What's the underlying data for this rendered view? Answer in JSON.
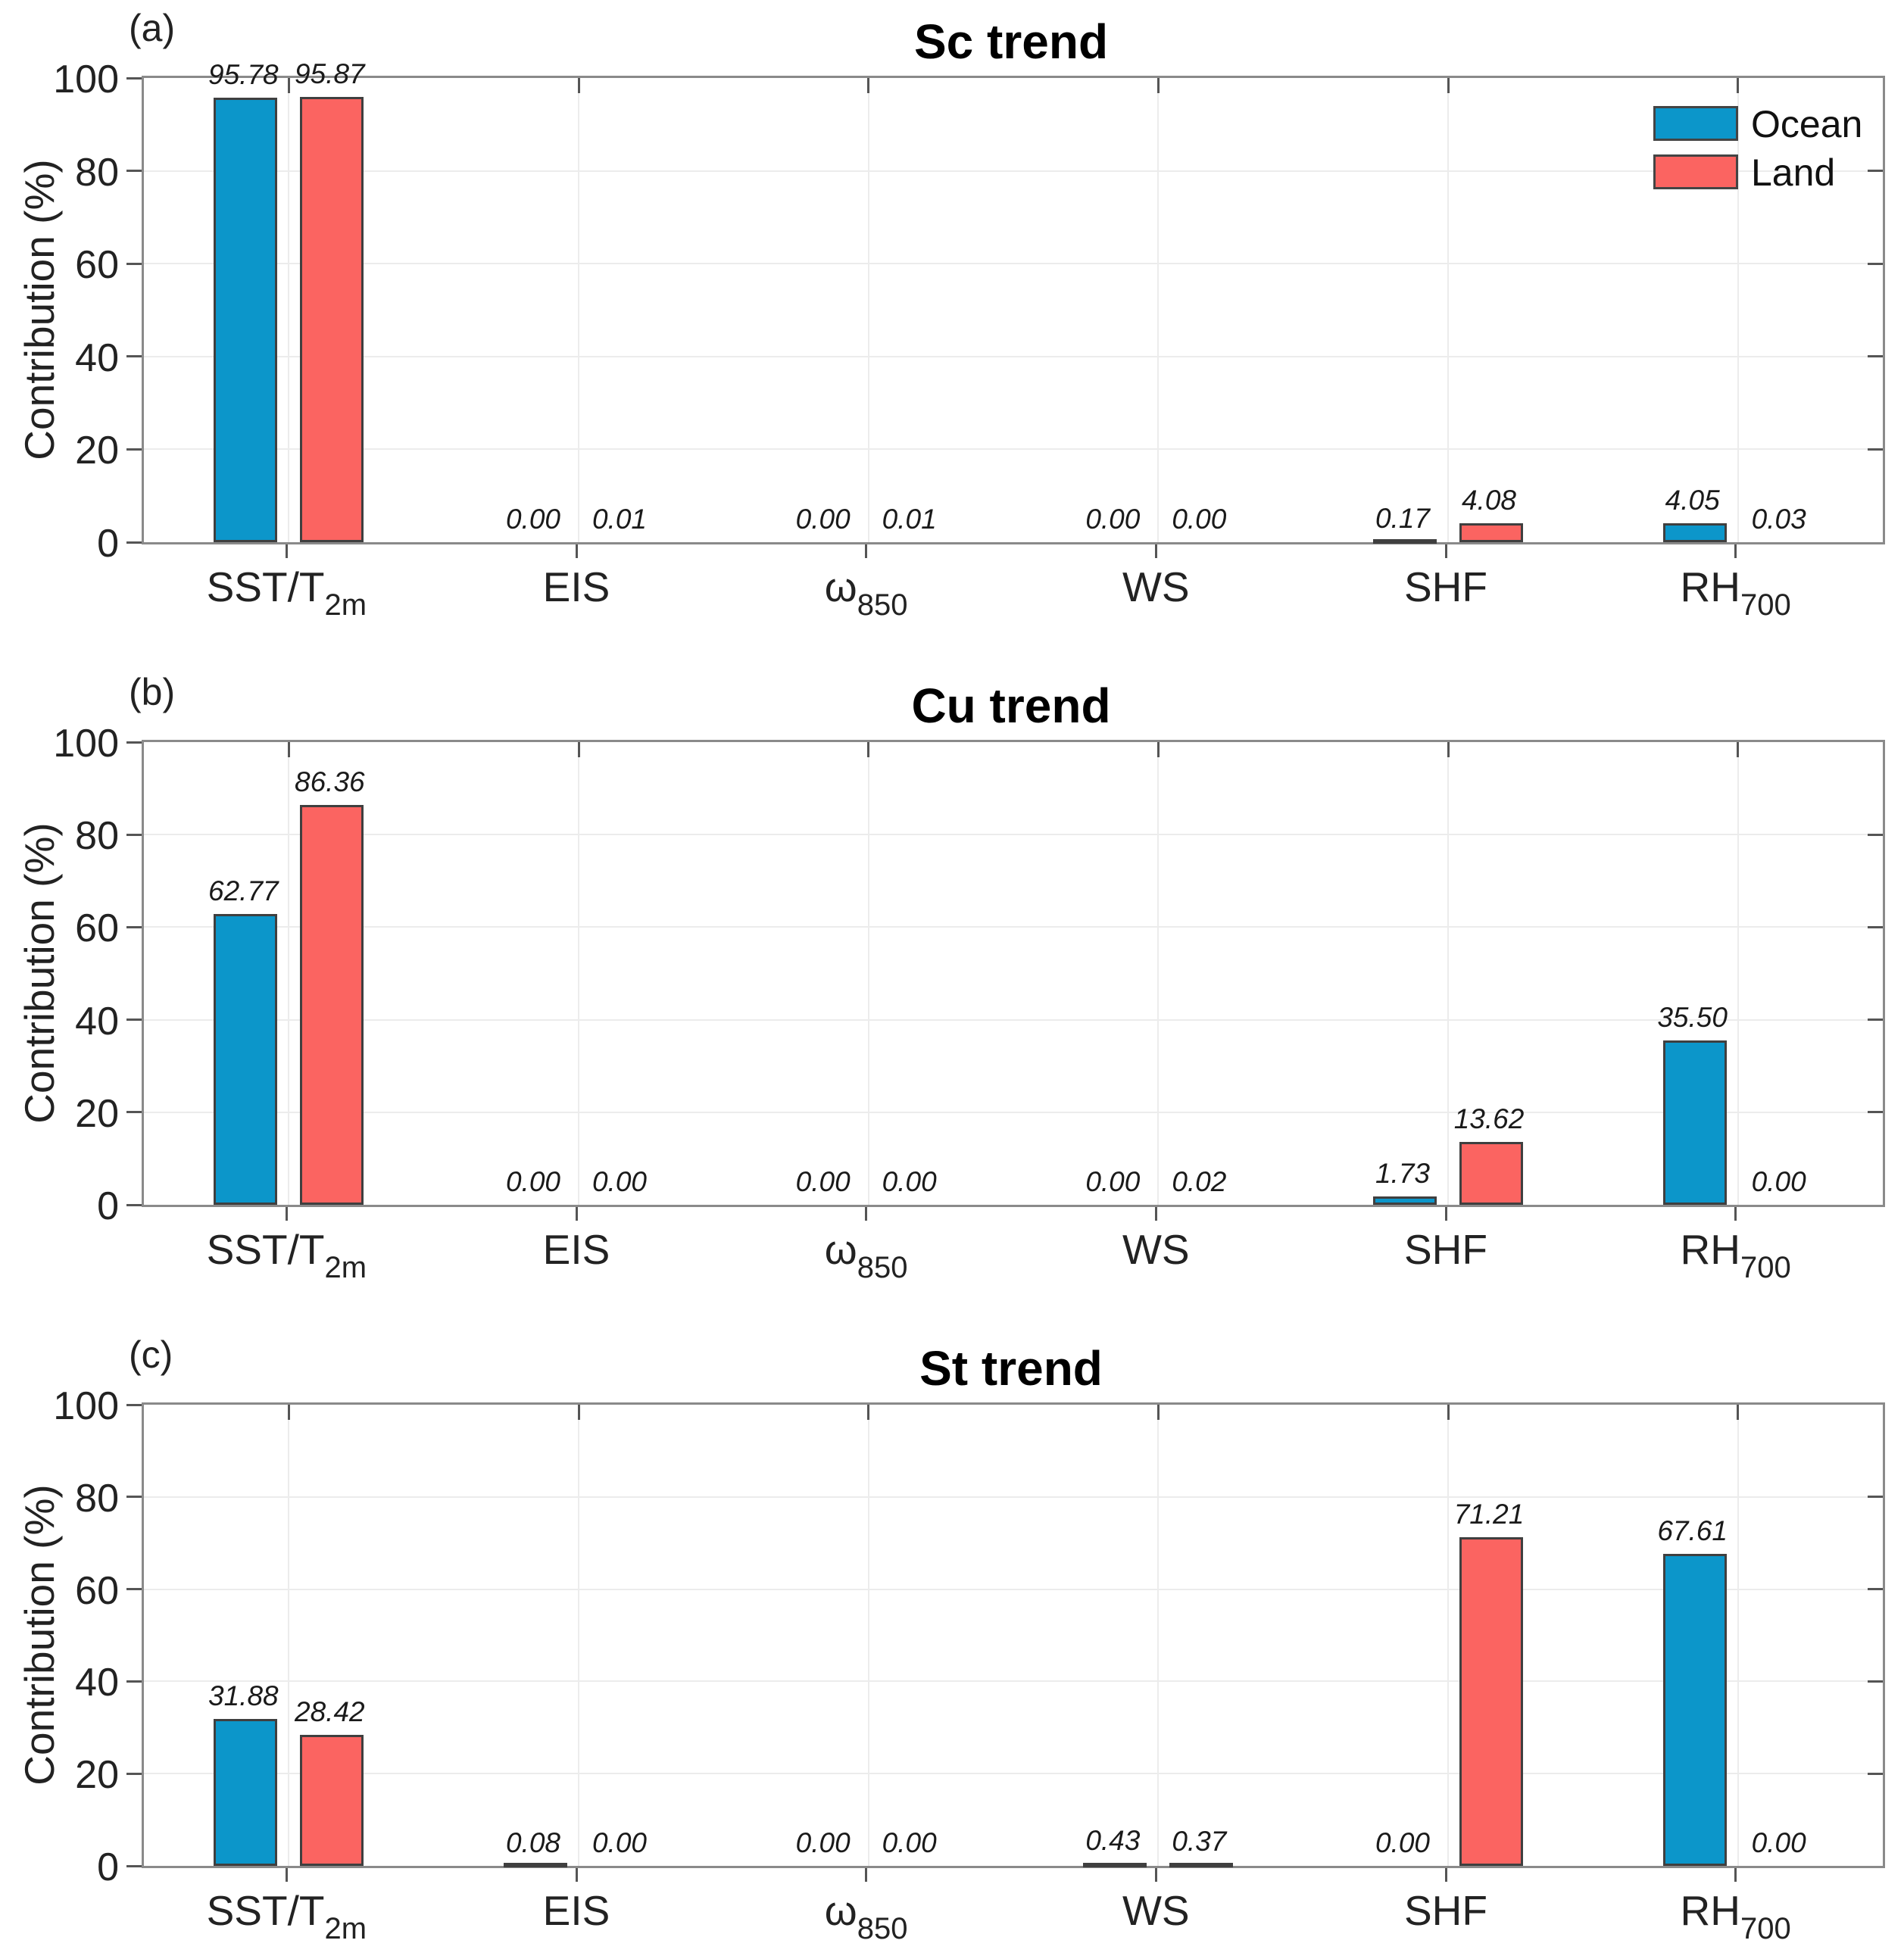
{
  "figure": {
    "y_axis_label": "Contribution (%)",
    "y_ticks": [
      0,
      20,
      40,
      60,
      80,
      100
    ],
    "ylim": [
      0,
      100
    ],
    "grid": true,
    "legend": {
      "position": "top-right-inside-panel-a",
      "entries": [
        {
          "label": "Ocean",
          "color": "#0C96CA"
        },
        {
          "label": "Land",
          "color": "#FB6461"
        }
      ]
    },
    "colors": {
      "ocean": "#0C96CA",
      "land": "#FB6461",
      "bar_border": "#3F3F3F",
      "axis_border": "#8A8A8A",
      "gridline": "#ECECEC",
      "text": "#1A1A1A"
    },
    "categories_rich": [
      {
        "base": "SST/T",
        "sub": "2m"
      },
      {
        "base": "EIS",
        "sub": ""
      },
      {
        "base": "ω",
        "sub": "850"
      },
      {
        "base": "WS",
        "sub": ""
      },
      {
        "base": "SHF",
        "sub": ""
      },
      {
        "base": "RH",
        "sub": "700"
      }
    ]
  },
  "chart_data": [
    {
      "type": "bar",
      "panel_label": "(a)",
      "title": "Sc trend",
      "categories": [
        "SST/T_2m",
        "EIS",
        "ω_850",
        "WS",
        "SHF",
        "RH_700"
      ],
      "xlabel": "",
      "ylabel": "Contribution (%)",
      "ylim": [
        0,
        100
      ],
      "legend_visible": true,
      "series": [
        {
          "name": "Ocean",
          "values": [
            95.78,
            0.0,
            0.0,
            0.0,
            0.17,
            4.05
          ]
        },
        {
          "name": "Land",
          "values": [
            95.87,
            0.01,
            0.01,
            0.0,
            4.08,
            0.03
          ]
        }
      ]
    },
    {
      "type": "bar",
      "panel_label": "(b)",
      "title": "Cu trend",
      "categories": [
        "SST/T_2m",
        "EIS",
        "ω_850",
        "WS",
        "SHF",
        "RH_700"
      ],
      "xlabel": "",
      "ylabel": "Contribution (%)",
      "ylim": [
        0,
        100
      ],
      "legend_visible": false,
      "series": [
        {
          "name": "Ocean",
          "values": [
            62.77,
            0.0,
            0.0,
            0.0,
            1.73,
            35.5
          ]
        },
        {
          "name": "Land",
          "values": [
            86.36,
            0.0,
            0.0,
            0.02,
            13.62,
            0.0
          ]
        }
      ]
    },
    {
      "type": "bar",
      "panel_label": "(c)",
      "title": "St trend",
      "categories": [
        "SST/T_2m",
        "EIS",
        "ω_850",
        "WS",
        "SHF",
        "RH_700"
      ],
      "xlabel": "",
      "ylabel": "Contribution (%)",
      "ylim": [
        0,
        100
      ],
      "legend_visible": false,
      "series": [
        {
          "name": "Ocean",
          "values": [
            31.88,
            0.08,
            0.0,
            0.43,
            0.0,
            67.61
          ]
        },
        {
          "name": "Land",
          "values": [
            28.42,
            0.0,
            0.0,
            0.37,
            71.21,
            0.0
          ]
        }
      ]
    }
  ]
}
